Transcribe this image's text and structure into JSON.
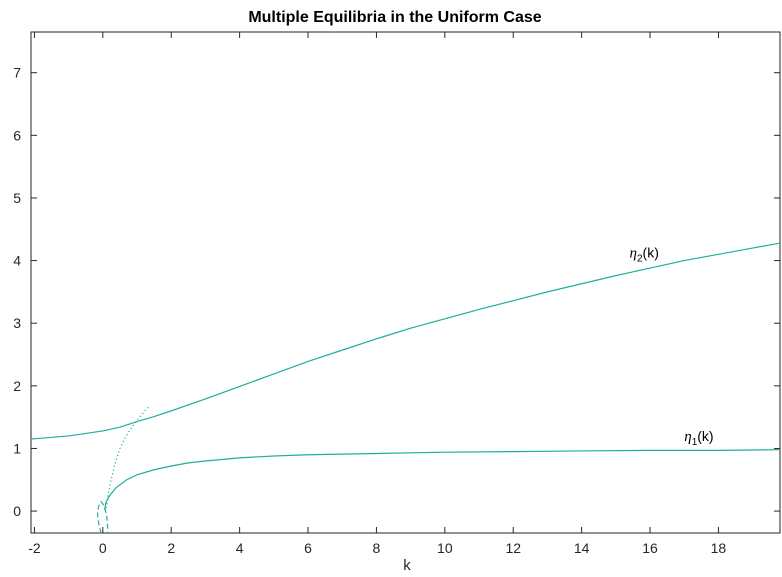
{
  "chart_data": {
    "type": "line",
    "title": "Multiple Equilibria in the Uniform Case",
    "xlabel": "k",
    "ylabel": "",
    "xlim": [
      -2.1,
      19.8
    ],
    "ylim": [
      -0.35,
      7.65
    ],
    "xticks": [
      -2,
      0,
      2,
      4,
      6,
      8,
      10,
      12,
      14,
      16,
      18
    ],
    "yticks": [
      0,
      1,
      2,
      3,
      4,
      5,
      6,
      7
    ],
    "grid": false,
    "line_color": "#1fae9a",
    "series": [
      {
        "name": "η2(k)",
        "style": "solid",
        "x": [
          -2.1,
          -1,
          0,
          0.5,
          1,
          1.5,
          2,
          3,
          4,
          5,
          6,
          7,
          8,
          9,
          10,
          11,
          12,
          13,
          14,
          15,
          16,
          17,
          18,
          19,
          19.8
        ],
        "y": [
          1.15,
          1.2,
          1.28,
          1.34,
          1.43,
          1.51,
          1.6,
          1.79,
          1.99,
          2.19,
          2.39,
          2.57,
          2.75,
          2.92,
          3.07,
          3.22,
          3.36,
          3.5,
          3.63,
          3.76,
          3.88,
          4.0,
          4.1,
          4.2,
          4.28
        ]
      },
      {
        "name": "η1(k)",
        "style": "solid",
        "x": [
          0.05,
          0.1,
          0.2,
          0.4,
          0.7,
          1,
          1.5,
          2,
          2.5,
          3,
          4,
          5,
          6,
          8,
          10,
          12,
          14,
          16,
          18,
          19.8
        ],
        "y": [
          0.02,
          0.15,
          0.25,
          0.38,
          0.5,
          0.58,
          0.66,
          0.72,
          0.77,
          0.8,
          0.85,
          0.88,
          0.9,
          0.92,
          0.94,
          0.95,
          0.96,
          0.97,
          0.97,
          0.98
        ]
      },
      {
        "name": "",
        "style": "dotted",
        "x": [
          0.1,
          0.2,
          0.35,
          0.5,
          0.65,
          0.8,
          1.0,
          1.15,
          1.35
        ],
        "y": [
          0.05,
          0.4,
          0.75,
          1.0,
          1.17,
          1.3,
          1.45,
          1.55,
          1.67
        ]
      },
      {
        "name": "",
        "style": "dashed",
        "x": [
          -0.05,
          -0.1,
          -0.15,
          -0.15,
          -0.12,
          -0.05,
          0.05,
          0.12,
          0.15
        ],
        "y": [
          -0.35,
          -0.25,
          -0.1,
          0.0,
          0.08,
          0.15,
          0.08,
          -0.1,
          -0.35
        ]
      }
    ],
    "annotations": [
      {
        "symbol": "η",
        "sub": "2",
        "suffix": "(k)",
        "x": 15.4,
        "y": 4.05
      },
      {
        "symbol": "η",
        "sub": "1",
        "suffix": "(k)",
        "x": 17.0,
        "y": 1.12
      }
    ]
  }
}
